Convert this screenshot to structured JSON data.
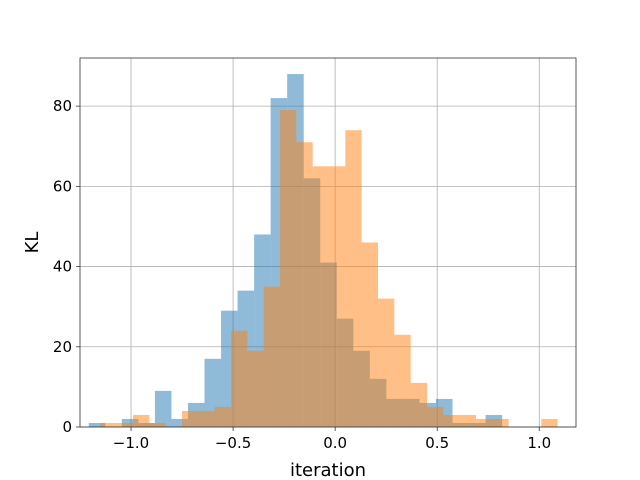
{
  "chart_data": {
    "type": "histogram",
    "title": "",
    "xlabel": "iteration",
    "ylabel": "KL",
    "xlim": [
      -1.25,
      1.18
    ],
    "ylim": [
      0,
      92
    ],
    "grid": true,
    "xticks": [
      -1.0,
      -0.5,
      0.0,
      0.5,
      1.0
    ],
    "xtick_labels": [
      "−1.0",
      "−0.5",
      "0.0",
      "0.5",
      "1.0"
    ],
    "yticks": [
      0,
      20,
      40,
      60,
      80
    ],
    "ytick_labels": [
      "0",
      "20",
      "40",
      "60",
      "80"
    ],
    "series": [
      {
        "color": "#1f77b4",
        "alpha": 0.5,
        "bins": [
          {
            "x0": -1.207,
            "x1": -1.126,
            "count": 1
          },
          {
            "x0": -1.126,
            "x1": -1.045,
            "count": 0
          },
          {
            "x0": -1.045,
            "x1": -0.964,
            "count": 2
          },
          {
            "x0": -0.964,
            "x1": -0.883,
            "count": 1
          },
          {
            "x0": -0.883,
            "x1": -0.802,
            "count": 9
          },
          {
            "x0": -0.802,
            "x1": -0.721,
            "count": 2
          },
          {
            "x0": -0.721,
            "x1": -0.64,
            "count": 6
          },
          {
            "x0": -0.64,
            "x1": -0.559,
            "count": 17
          },
          {
            "x0": -0.559,
            "x1": -0.478,
            "count": 29
          },
          {
            "x0": -0.478,
            "x1": -0.397,
            "count": 34
          },
          {
            "x0": -0.397,
            "x1": -0.316,
            "count": 48
          },
          {
            "x0": -0.316,
            "x1": -0.235,
            "count": 82
          },
          {
            "x0": -0.235,
            "x1": -0.154,
            "count": 88
          },
          {
            "x0": -0.154,
            "x1": -0.073,
            "count": 62
          },
          {
            "x0": -0.073,
            "x1": 0.008,
            "count": 41
          },
          {
            "x0": 0.008,
            "x1": 0.089,
            "count": 27
          },
          {
            "x0": 0.089,
            "x1": 0.17,
            "count": 19
          },
          {
            "x0": 0.17,
            "x1": 0.251,
            "count": 12
          },
          {
            "x0": 0.251,
            "x1": 0.332,
            "count": 7
          },
          {
            "x0": 0.332,
            "x1": 0.413,
            "count": 7
          },
          {
            "x0": 0.413,
            "x1": 0.494,
            "count": 6
          },
          {
            "x0": 0.494,
            "x1": 0.575,
            "count": 7
          },
          {
            "x0": 0.575,
            "x1": 0.656,
            "count": 1
          },
          {
            "x0": 0.656,
            "x1": 0.737,
            "count": 1
          },
          {
            "x0": 0.737,
            "x1": 0.818,
            "count": 3
          }
        ]
      },
      {
        "color": "#ff7f0e",
        "alpha": 0.5,
        "bins": [
          {
            "x0": -1.15,
            "x1": -1.07,
            "count": 1
          },
          {
            "x0": -1.07,
            "x1": -0.99,
            "count": 1
          },
          {
            "x0": -0.99,
            "x1": -0.91,
            "count": 3
          },
          {
            "x0": -0.91,
            "x1": -0.83,
            "count": 1
          },
          {
            "x0": -0.83,
            "x1": -0.75,
            "count": 0
          },
          {
            "x0": -0.75,
            "x1": -0.67,
            "count": 4
          },
          {
            "x0": -0.67,
            "x1": -0.59,
            "count": 4
          },
          {
            "x0": -0.59,
            "x1": -0.51,
            "count": 5
          },
          {
            "x0": -0.51,
            "x1": -0.43,
            "count": 24
          },
          {
            "x0": -0.43,
            "x1": -0.35,
            "count": 19
          },
          {
            "x0": -0.35,
            "x1": -0.27,
            "count": 35
          },
          {
            "x0": -0.27,
            "x1": -0.19,
            "count": 79
          },
          {
            "x0": -0.19,
            "x1": -0.11,
            "count": 71
          },
          {
            "x0": -0.11,
            "x1": -0.03,
            "count": 65
          },
          {
            "x0": -0.03,
            "x1": 0.05,
            "count": 65
          },
          {
            "x0": 0.05,
            "x1": 0.13,
            "count": 74
          },
          {
            "x0": 0.13,
            "x1": 0.21,
            "count": 46
          },
          {
            "x0": 0.21,
            "x1": 0.29,
            "count": 32
          },
          {
            "x0": 0.29,
            "x1": 0.37,
            "count": 23
          },
          {
            "x0": 0.37,
            "x1": 0.45,
            "count": 11
          },
          {
            "x0": 0.45,
            "x1": 0.53,
            "count": 5
          },
          {
            "x0": 0.53,
            "x1": 0.61,
            "count": 3
          },
          {
            "x0": 0.61,
            "x1": 0.69,
            "count": 3
          },
          {
            "x0": 0.69,
            "x1": 0.77,
            "count": 2
          },
          {
            "x0": 0.77,
            "x1": 0.85,
            "count": 2
          },
          {
            "x0": 0.85,
            "x1": 0.93,
            "count": 0
          },
          {
            "x0": 0.93,
            "x1": 1.01,
            "count": 0
          },
          {
            "x0": 1.01,
            "x1": 1.09,
            "count": 2
          }
        ]
      }
    ]
  }
}
